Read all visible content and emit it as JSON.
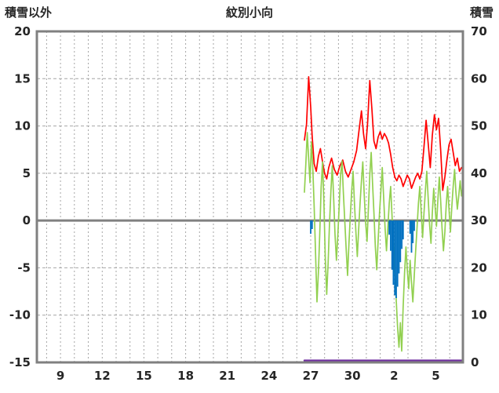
{
  "header": {
    "left_label": "積雪以外",
    "title": "紋別小向",
    "right_label": "積雪"
  },
  "chart_data": {
    "type": "line",
    "title": "紋別小向",
    "left_axis": {
      "label": "積雪以外",
      "min": -15,
      "max": 20,
      "ticks": [
        20,
        15,
        10,
        5,
        0,
        -5,
        -10,
        -15
      ]
    },
    "right_axis": {
      "label": "積雪",
      "min": 0,
      "max": 70,
      "ticks": [
        70,
        60,
        50,
        40,
        30,
        20,
        10,
        0
      ]
    },
    "x_axis": {
      "min": 7.3,
      "max": 37.95,
      "tick_positions": [
        9,
        12,
        15,
        18,
        21,
        24,
        27,
        30,
        33,
        36
      ],
      "tick_labels": [
        "9",
        "12",
        "15",
        "18",
        "21",
        "24",
        "27",
        "30",
        "2",
        "5"
      ],
      "grid_step": 1
    },
    "grid": "dashed",
    "legend": "none",
    "colors": {
      "frame": "#808080",
      "grid": "#a6a6a6",
      "zero_line": "#808080",
      "text": "#262626",
      "red": "#ff0000",
      "green": "#92d050",
      "blue": "#0070c0",
      "purple": "#7030a0"
    },
    "series": [
      {
        "name": "temperature-red-line",
        "type": "line",
        "axis": "left",
        "color": "#ff0000",
        "width": 1.7,
        "points": [
          [
            26.55,
            8.5
          ],
          [
            26.7,
            10.2
          ],
          [
            26.85,
            15.2
          ],
          [
            27.0,
            12.0
          ],
          [
            27.1,
            9.0
          ],
          [
            27.25,
            6.0
          ],
          [
            27.4,
            5.2
          ],
          [
            27.55,
            6.8
          ],
          [
            27.7,
            7.6
          ],
          [
            27.85,
            6.2
          ],
          [
            28.0,
            5.0
          ],
          [
            28.15,
            4.4
          ],
          [
            28.3,
            5.6
          ],
          [
            28.5,
            6.6
          ],
          [
            28.7,
            5.4
          ],
          [
            28.9,
            4.8
          ],
          [
            29.1,
            5.8
          ],
          [
            29.3,
            6.4
          ],
          [
            29.5,
            5.2
          ],
          [
            29.7,
            4.6
          ],
          [
            29.9,
            5.4
          ],
          [
            30.1,
            6.2
          ],
          [
            30.3,
            7.4
          ],
          [
            30.5,
            9.8
          ],
          [
            30.65,
            11.6
          ],
          [
            30.8,
            9.2
          ],
          [
            30.95,
            7.6
          ],
          [
            31.1,
            10.4
          ],
          [
            31.25,
            14.8
          ],
          [
            31.4,
            11.8
          ],
          [
            31.55,
            8.4
          ],
          [
            31.7,
            7.6
          ],
          [
            31.85,
            8.8
          ],
          [
            32.0,
            9.4
          ],
          [
            32.15,
            8.6
          ],
          [
            32.3,
            9.2
          ],
          [
            32.45,
            8.8
          ],
          [
            32.6,
            8.2
          ],
          [
            32.75,
            7.0
          ],
          [
            32.9,
            5.6
          ],
          [
            33.05,
            4.6
          ],
          [
            33.2,
            4.2
          ],
          [
            33.35,
            4.8
          ],
          [
            33.5,
            4.4
          ],
          [
            33.65,
            3.6
          ],
          [
            33.8,
            4.2
          ],
          [
            33.95,
            4.8
          ],
          [
            34.1,
            4.4
          ],
          [
            34.25,
            3.4
          ],
          [
            34.4,
            4.0
          ],
          [
            34.55,
            4.6
          ],
          [
            34.7,
            5.0
          ],
          [
            34.85,
            4.4
          ],
          [
            35.0,
            5.2
          ],
          [
            35.15,
            7.8
          ],
          [
            35.3,
            10.6
          ],
          [
            35.45,
            8.2
          ],
          [
            35.6,
            5.6
          ],
          [
            35.75,
            9.0
          ],
          [
            35.9,
            11.2
          ],
          [
            36.05,
            9.6
          ],
          [
            36.2,
            10.8
          ],
          [
            36.35,
            7.4
          ],
          [
            36.5,
            3.2
          ],
          [
            36.65,
            4.6
          ],
          [
            36.8,
            6.4
          ],
          [
            36.95,
            8.0
          ],
          [
            37.1,
            8.6
          ],
          [
            37.25,
            7.2
          ],
          [
            37.4,
            5.8
          ],
          [
            37.55,
            6.6
          ],
          [
            37.7,
            5.2
          ],
          [
            37.85,
            5.6
          ]
        ]
      },
      {
        "name": "green-line",
        "type": "line",
        "axis": "left",
        "color": "#92d050",
        "width": 1.7,
        "points": [
          [
            26.55,
            3.0
          ],
          [
            26.65,
            6.0
          ],
          [
            26.75,
            9.3
          ],
          [
            26.85,
            6.5
          ],
          [
            26.95,
            4.0
          ],
          [
            27.05,
            8.3
          ],
          [
            27.15,
            5.5
          ],
          [
            27.25,
            1.5
          ],
          [
            27.35,
            -3.5
          ],
          [
            27.45,
            -8.6
          ],
          [
            27.55,
            -5.5
          ],
          [
            27.65,
            -1.5
          ],
          [
            27.75,
            3.5
          ],
          [
            27.85,
            6.2
          ],
          [
            27.95,
            2.0
          ],
          [
            28.05,
            -4.0
          ],
          [
            28.15,
            -7.8
          ],
          [
            28.25,
            -4.5
          ],
          [
            28.35,
            -0.5
          ],
          [
            28.45,
            3.0
          ],
          [
            28.55,
            5.8
          ],
          [
            28.65,
            2.5
          ],
          [
            28.75,
            -1.5
          ],
          [
            28.85,
            -4.2
          ],
          [
            28.95,
            -1.5
          ],
          [
            29.05,
            1.5
          ],
          [
            29.15,
            4.8
          ],
          [
            29.25,
            6.3
          ],
          [
            29.35,
            3.0
          ],
          [
            29.45,
            0.0
          ],
          [
            29.55,
            -3.0
          ],
          [
            29.65,
            -5.8
          ],
          [
            29.75,
            -2.5
          ],
          [
            29.85,
            0.5
          ],
          [
            29.95,
            3.2
          ],
          [
            30.05,
            5.2
          ],
          [
            30.15,
            1.8
          ],
          [
            30.25,
            -1.2
          ],
          [
            30.35,
            -3.8
          ],
          [
            30.45,
            -1.0
          ],
          [
            30.55,
            1.8
          ],
          [
            30.65,
            4.2
          ],
          [
            30.75,
            6.2
          ],
          [
            30.85,
            2.8
          ],
          [
            30.95,
            -0.2
          ],
          [
            31.05,
            -2.2
          ],
          [
            31.15,
            1.2
          ],
          [
            31.25,
            4.8
          ],
          [
            31.35,
            7.2
          ],
          [
            31.45,
            4.0
          ],
          [
            31.55,
            0.8
          ],
          [
            31.65,
            -2.8
          ],
          [
            31.75,
            -5.2
          ],
          [
            31.85,
            -2.2
          ],
          [
            31.95,
            0.8
          ],
          [
            32.05,
            3.2
          ],
          [
            32.15,
            5.6
          ],
          [
            32.25,
            2.4
          ],
          [
            32.35,
            -0.8
          ],
          [
            32.45,
            -3.2
          ],
          [
            32.55,
            -0.8
          ],
          [
            32.65,
            1.8
          ],
          [
            32.75,
            3.6
          ],
          [
            32.85,
            0.6
          ],
          [
            32.95,
            -2.6
          ],
          [
            33.05,
            -5.8
          ],
          [
            33.15,
            -8.4
          ],
          [
            33.25,
            -11.2
          ],
          [
            33.35,
            -13.4
          ],
          [
            33.45,
            -10.8
          ],
          [
            33.55,
            -13.8
          ],
          [
            33.65,
            -9.2
          ],
          [
            33.75,
            -5.6
          ],
          [
            33.85,
            -2.8
          ],
          [
            33.95,
            -5.2
          ],
          [
            34.05,
            -7.2
          ],
          [
            34.15,
            -4.2
          ],
          [
            34.25,
            -6.6
          ],
          [
            34.35,
            -8.6
          ],
          [
            34.45,
            -5.8
          ],
          [
            34.55,
            -3.2
          ],
          [
            34.65,
            -0.8
          ],
          [
            34.75,
            1.8
          ],
          [
            34.85,
            3.6
          ],
          [
            34.95,
            0.8
          ],
          [
            35.05,
            -1.8
          ],
          [
            35.15,
            0.8
          ],
          [
            35.25,
            3.2
          ],
          [
            35.35,
            5.2
          ],
          [
            35.45,
            2.4
          ],
          [
            35.55,
            -0.4
          ],
          [
            35.65,
            -2.4
          ],
          [
            35.75,
            0.8
          ],
          [
            35.85,
            3.4
          ],
          [
            35.95,
            1.4
          ],
          [
            36.05,
            -0.6
          ],
          [
            36.15,
            2.2
          ],
          [
            36.25,
            4.6
          ],
          [
            36.35,
            2.0
          ],
          [
            36.45,
            -0.8
          ],
          [
            36.55,
            -3.2
          ],
          [
            36.65,
            -1.2
          ],
          [
            36.75,
            1.6
          ],
          [
            36.85,
            3.6
          ],
          [
            36.95,
            1.2
          ],
          [
            37.05,
            -1.2
          ],
          [
            37.15,
            1.4
          ],
          [
            37.25,
            3.6
          ],
          [
            37.35,
            5.4
          ],
          [
            37.45,
            3.0
          ],
          [
            37.55,
            1.2
          ],
          [
            37.65,
            2.6
          ],
          [
            37.75,
            4.2
          ],
          [
            37.85,
            2.6
          ],
          [
            37.9,
            3.2
          ]
        ]
      },
      {
        "name": "blue-bars",
        "type": "bar",
        "axis": "left",
        "color": "#0070c0",
        "bar_width_days": 0.1,
        "points": [
          [
            27.0,
            -1.4
          ],
          [
            27.1,
            -0.9
          ],
          [
            32.65,
            -1.5
          ],
          [
            32.75,
            -3.2
          ],
          [
            32.85,
            -5.2
          ],
          [
            32.95,
            -6.8
          ],
          [
            33.05,
            -7.9
          ],
          [
            33.15,
            -8.2
          ],
          [
            33.25,
            -7.0
          ],
          [
            33.35,
            -5.6
          ],
          [
            33.45,
            -4.4
          ],
          [
            33.55,
            -3.0
          ],
          [
            33.65,
            -2.0
          ],
          [
            34.15,
            -1.4
          ],
          [
            34.25,
            -3.4
          ],
          [
            34.35,
            -2.4
          ],
          [
            34.45,
            -1.1
          ]
        ]
      },
      {
        "name": "snow-depth-purple-line",
        "type": "line",
        "axis": "right",
        "color": "#7030a0",
        "width": 2.4,
        "points": [
          [
            26.55,
            0.4
          ],
          [
            37.9,
            0.4
          ]
        ]
      }
    ]
  }
}
